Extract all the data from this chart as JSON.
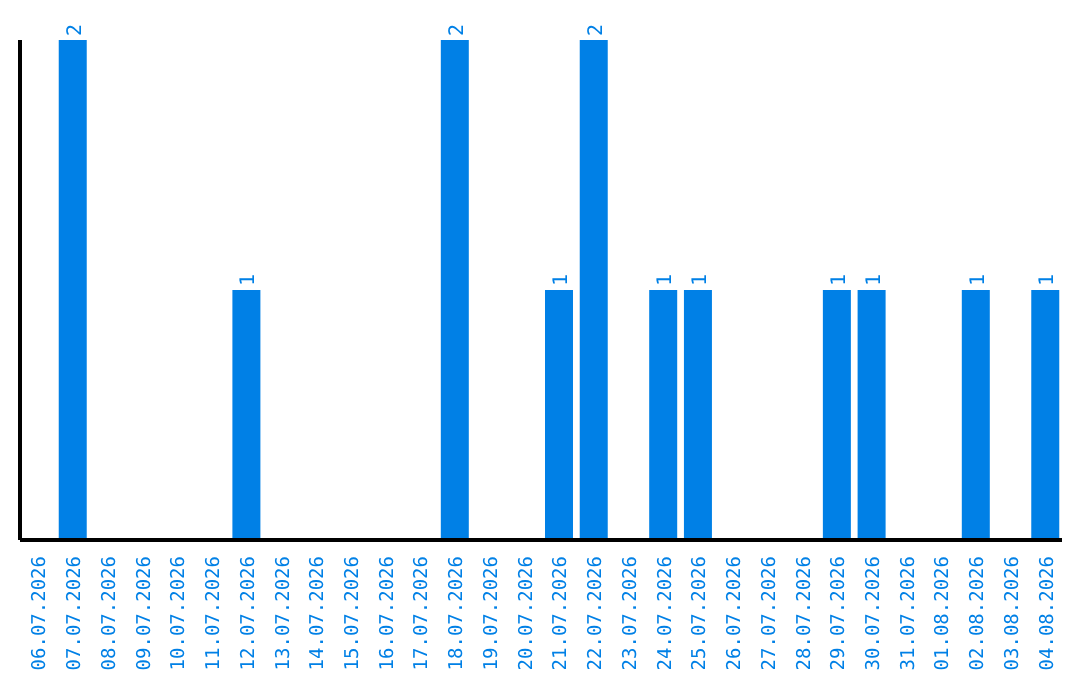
{
  "chart_data": {
    "type": "bar",
    "categories": [
      "06.07.2026",
      "07.07.2026",
      "08.07.2026",
      "09.07.2026",
      "10.07.2026",
      "11.07.2026",
      "12.07.2026",
      "13.07.2026",
      "14.07.2026",
      "15.07.2026",
      "16.07.2026",
      "17.07.2026",
      "18.07.2026",
      "19.07.2026",
      "20.07.2026",
      "21.07.2026",
      "22.07.2026",
      "23.07.2026",
      "24.07.2026",
      "25.07.2026",
      "26.07.2026",
      "27.07.2026",
      "28.07.2026",
      "29.07.2026",
      "30.07.2026",
      "31.07.2026",
      "01.08.2026",
      "02.08.2026",
      "03.08.2026",
      "04.08.2026"
    ],
    "values": [
      0,
      2,
      0,
      0,
      0,
      0,
      1,
      0,
      0,
      0,
      0,
      0,
      2,
      0,
      0,
      1,
      2,
      0,
      1,
      1,
      0,
      0,
      0,
      1,
      1,
      0,
      0,
      1,
      0,
      1
    ],
    "value_labels": [
      null,
      "2",
      null,
      null,
      null,
      null,
      "1",
      null,
      null,
      null,
      null,
      null,
      "2",
      null,
      null,
      "1",
      "2",
      null,
      "1",
      "1",
      null,
      null,
      null,
      "1",
      "1",
      null,
      null,
      "1",
      null,
      "1"
    ],
    "color": "#0080e6",
    "tick_labels": "x"
  }
}
